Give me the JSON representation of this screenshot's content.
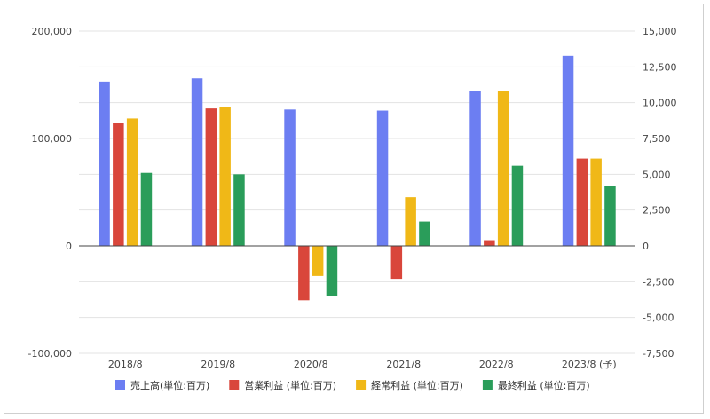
{
  "chart_data": {
    "type": "bar",
    "title": "",
    "categories": [
      "2018/8",
      "2019/8",
      "2020/8",
      "2021/8",
      "2022/8",
      "2023/8 (予)"
    ],
    "series": [
      {
        "name": "売上高(単位:百万)",
        "axis": "left",
        "color": "#6c7ef2",
        "values": [
          153000,
          156000,
          127000,
          126000,
          144000,
          177000
        ]
      },
      {
        "name": "営業利益 (単位:百万)",
        "axis": "right",
        "color": "#d9463b",
        "values": [
          8600,
          9600,
          -3800,
          -2300,
          400,
          6100
        ]
      },
      {
        "name": "経常利益 (単位:百万)",
        "axis": "right",
        "color": "#f0b817",
        "values": [
          8900,
          9700,
          -2100,
          3400,
          10800,
          6100
        ]
      },
      {
        "name": "最終利益 (単位:百万)",
        "axis": "right",
        "color": "#2a9d5a",
        "values": [
          5100,
          5000,
          -3500,
          1700,
          5600,
          4200
        ]
      }
    ],
    "y_left": {
      "min": -100000,
      "max": 200000,
      "ticks": [
        "200,000",
        "100,000",
        "0",
        "-100,000"
      ],
      "tick_values": [
        200000,
        100000,
        0,
        -100000
      ]
    },
    "y_right": {
      "min": -7500,
      "max": 15000,
      "ticks": [
        "15,000",
        "12,500",
        "10,000",
        "7,500",
        "5,000",
        "2,500",
        "0",
        "-2,500",
        "-5,000",
        "-7,500"
      ],
      "tick_values": [
        15000,
        12500,
        10000,
        7500,
        5000,
        2500,
        0,
        -2500,
        -5000,
        -7500
      ]
    },
    "grid": true,
    "legend": "bottom"
  }
}
